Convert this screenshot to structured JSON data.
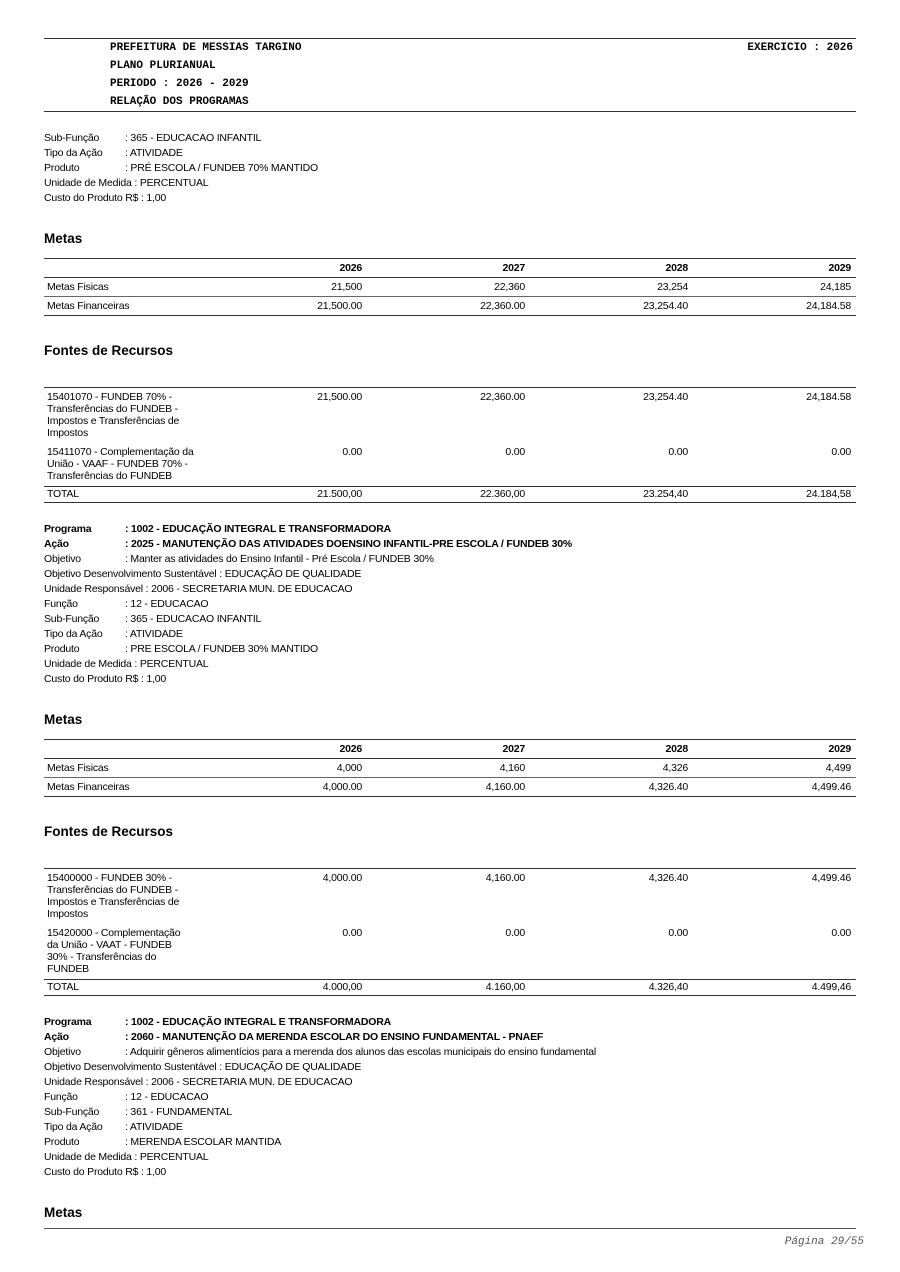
{
  "header": {
    "lines": [
      "PREFEITURA DE MESSIAS TARGINO",
      "PLANO PLURIANUAL",
      "PERIODO : 2026 - 2029",
      "RELAÇÃO DOS PROGRAMAS"
    ],
    "exercise": "EXERCICIO : 2026"
  },
  "sections": [
    {
      "fields": [
        {
          "label": "Sub-Função",
          "value": ": 365 - EDUCACAO INFANTIL"
        },
        {
          "label": "Tipo da Ação",
          "value": ": ATIVIDADE"
        },
        {
          "label": "Produto",
          "value": ": PRÉ ESCOLA / FUNDEB 70% MANTIDO"
        },
        {
          "text": "Unidade de Medida : PERCENTUAL"
        },
        {
          "text": "Custo do Produto R$ : 1,00"
        }
      ],
      "metas": {
        "title": "Metas",
        "years": [
          "2026",
          "2027",
          "2028",
          "2029"
        ],
        "rows": [
          {
            "label": "Metas Fisicas",
            "values": [
              "21,500",
              "22,360",
              "23,254",
              "24,185"
            ]
          },
          {
            "label": "Metas Financeiras",
            "values": [
              "21,500.00",
              "22,360.00",
              "23,254.40",
              "24,184.58"
            ]
          }
        ]
      },
      "fontes": {
        "title": "Fontes de Recursos",
        "rows": [
          {
            "label": "15401070 - FUNDEB 70% - Transferências do FUNDEB - Impostos e Transferências de Impostos",
            "values": [
              "21,500.00",
              "22,360.00",
              "23,254.40",
              "24,184.58"
            ]
          },
          {
            "label": "15411070 - Complementação da União - VAAF - FUNDEB 70% - Transferências do FUNDEB",
            "values": [
              "0.00",
              "0.00",
              "0.00",
              "0.00"
            ]
          }
        ],
        "total": {
          "label": "TOTAL",
          "values": [
            "21.500,00",
            "22.360,00",
            "23.254,40",
            "24.184,58"
          ]
        }
      }
    },
    {
      "program": {
        "label": "Programa",
        "value": ": 1002 - EDUCAÇÃO INTEGRAL E TRANSFORMADORA"
      },
      "action": {
        "label": "Ação",
        "value": ": 2025 - MANUTENÇÃO DAS ATIVIDADES DOENSINO INFANTIL-PRE ESCOLA / FUNDEB 30%"
      },
      "fields": [
        {
          "label": "Objetivo",
          "value": ": Manter as atividades do Ensino Infantil - Pré Escola / FUNDEB 30%"
        },
        {
          "text": "Objetivo Desenvolvimento Sustentável : EDUCAÇÃO DE QUALIDADE"
        },
        {
          "text": "Unidade Responsável : 2006 - SECRETARIA MUN. DE EDUCACAO"
        },
        {
          "label": "Função",
          "value": ": 12 - EDUCACAO"
        },
        {
          "label": "Sub-Função",
          "value": ": 365 - EDUCACAO INFANTIL"
        },
        {
          "label": "Tipo da Ação",
          "value": ": ATIVIDADE"
        },
        {
          "label": "Produto",
          "value": ": PRE ESCOLA / FUNDEB 30% MANTIDO"
        },
        {
          "text": "Unidade de Medida : PERCENTUAL"
        },
        {
          "text": "Custo do Produto R$ : 1,00"
        }
      ],
      "metas": {
        "title": "Metas",
        "years": [
          "2026",
          "2027",
          "2028",
          "2029"
        ],
        "rows": [
          {
            "label": "Metas Fisicas",
            "values": [
              "4,000",
              "4,160",
              "4,326",
              "4,499"
            ]
          },
          {
            "label": "Metas Financeiras",
            "values": [
              "4,000.00",
              "4,160.00",
              "4,326.40",
              "4,499.46"
            ]
          }
        ]
      },
      "fontes": {
        "title": "Fontes de Recursos",
        "rows": [
          {
            "label": "15400000 - FUNDEB 30% - Transferências do FUNDEB - Impostos e Transferências de Impostos",
            "values": [
              "4,000.00",
              "4,160.00",
              "4,326.40",
              "4,499.46"
            ]
          },
          {
            "label": "15420000 - Complementação da União - VAAT - FUNDEB 30% - Transferências do FUNDEB",
            "values": [
              "0.00",
              "0.00",
              "0.00",
              "0.00"
            ]
          }
        ],
        "total": {
          "label": "TOTAL",
          "values": [
            "4.000,00",
            "4.160,00",
            "4.326,40",
            "4.499,46"
          ]
        }
      }
    },
    {
      "program": {
        "label": "Programa",
        "value": ": 1002 - EDUCAÇÃO INTEGRAL E TRANSFORMADORA"
      },
      "action": {
        "label": "Ação",
        "value": ": 2060 - MANUTENÇÃO DA MERENDA ESCOLAR DO ENSINO FUNDAMENTAL - PNAEF"
      },
      "fields": [
        {
          "label": "Objetivo",
          "value": ": Adquirir gêneros alimentícios para a merenda dos alunos das escolas municipais do ensino fundamental"
        },
        {
          "text": "Objetivo Desenvolvimento Sustentável : EDUCAÇÃO DE QUALIDADE"
        },
        {
          "text": "Unidade Responsável : 2006 - SECRETARIA MUN. DE EDUCACAO"
        },
        {
          "label": "Função",
          "value": ": 12 - EDUCACAO"
        },
        {
          "label": "Sub-Função",
          "value": ": 361 - FUNDAMENTAL"
        },
        {
          "label": "Tipo da Ação",
          "value": ": ATIVIDADE"
        },
        {
          "label": "Produto",
          "value": ": MERENDA ESCOLAR MANTIDA"
        },
        {
          "text": "Unidade de Medida : PERCENTUAL"
        },
        {
          "text": "Custo do Produto R$ : 1,00"
        }
      ],
      "metas": {
        "title": "Metas"
      }
    }
  ],
  "footer": {
    "page": "Página 29/55"
  }
}
